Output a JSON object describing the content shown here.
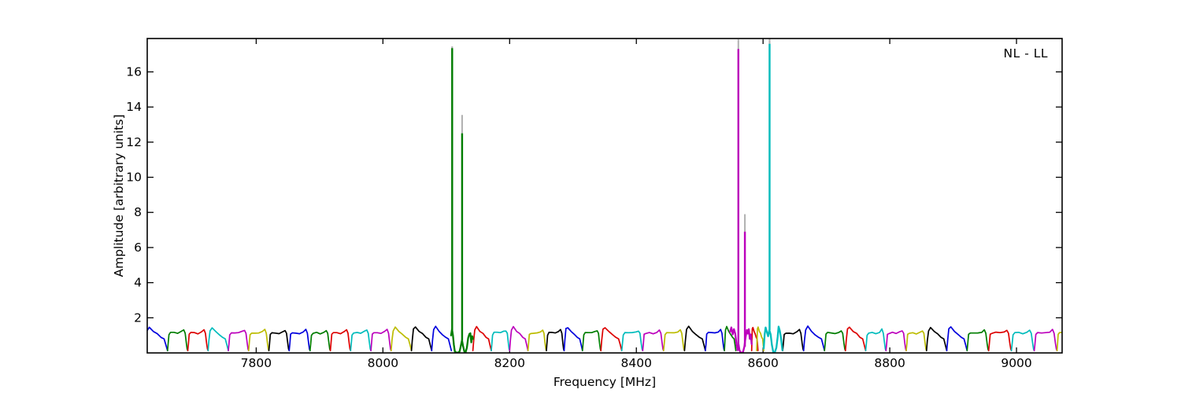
{
  "colors": {
    "b": "#0000dd",
    "g": "#007d00",
    "r": "#dd0000",
    "c": "#00bcbc",
    "m": "#bc00bc",
    "y": "#bcbc00",
    "k": "#000000",
    "gray": "#b3b3b3",
    "frame": "#000000",
    "background": "#ffffff"
  },
  "chart_data": {
    "type": "line",
    "corner_label": "NL - LL",
    "xlabel": "Frequency [MHz]",
    "ylabel": "Amplitude [arbitrary units]",
    "xlim": [
      7628,
      9072
    ],
    "ylim": [
      0,
      17.9
    ],
    "xticks": [
      7800,
      8000,
      8200,
      8400,
      8600,
      8800,
      9000
    ],
    "yticks": [
      2,
      4,
      6,
      8,
      10,
      12,
      14,
      16
    ],
    "grid": false,
    "legend": "none",
    "baseline_plateau_amplitude": 1.2,
    "baseline_notch_amplitude": 0.13,
    "baseline_segments": [
      [
        7624,
        7660,
        "b"
      ],
      [
        7660,
        7692,
        "g"
      ],
      [
        7692,
        7724,
        "r"
      ],
      [
        7724,
        7756,
        "c"
      ],
      [
        7756,
        7788,
        "m"
      ],
      [
        7788,
        7820,
        "y"
      ],
      [
        7820,
        7852,
        "k"
      ],
      [
        7852,
        7885,
        "b"
      ],
      [
        7885,
        7917,
        "g"
      ],
      [
        7917,
        7949,
        "r"
      ],
      [
        7949,
        7981,
        "c"
      ],
      [
        7981,
        8013,
        "m"
      ],
      [
        8013,
        8045,
        "y"
      ],
      [
        8045,
        8077,
        "k"
      ],
      [
        8077,
        8108,
        "b"
      ],
      [
        8142,
        8171,
        "r"
      ],
      [
        8171,
        8200,
        "c"
      ],
      [
        8200,
        8229,
        "m"
      ],
      [
        8229,
        8258,
        "y"
      ],
      [
        8258,
        8286,
        "k"
      ],
      [
        8286,
        8315,
        "b"
      ],
      [
        8315,
        8344,
        "g"
      ],
      [
        8344,
        8377,
        "r"
      ],
      [
        8377,
        8410,
        "c"
      ],
      [
        8410,
        8443,
        "m"
      ],
      [
        8443,
        8476,
        "y"
      ],
      [
        8476,
        8509,
        "k"
      ],
      [
        8509,
        8539,
        "b"
      ],
      [
        8539,
        8557,
        "g"
      ],
      [
        8582,
        8592,
        "r"
      ],
      [
        8590,
        8601,
        "y"
      ],
      [
        8631,
        8664,
        "k"
      ],
      [
        8664,
        8697,
        "b"
      ],
      [
        8697,
        8730,
        "g"
      ],
      [
        8730,
        8762,
        "r"
      ],
      [
        8762,
        8794,
        "c"
      ],
      [
        8794,
        8826,
        "m"
      ],
      [
        8826,
        8858,
        "y"
      ],
      [
        8858,
        8890,
        "k"
      ],
      [
        8890,
        8922,
        "b"
      ],
      [
        8922,
        8956,
        "g"
      ],
      [
        8956,
        8992,
        "r"
      ],
      [
        8992,
        9028,
        "c"
      ],
      [
        9028,
        9064,
        "m"
      ],
      [
        9064,
        9090,
        "y"
      ]
    ],
    "rfi_profiles": [
      {
        "color": "g",
        "points": [
          [
            8107.5,
            1.0
          ],
          [
            8109,
            1.35
          ],
          [
            8110.5,
            1.0
          ],
          [
            8112,
            0.45
          ],
          [
            8113.5,
            0.08
          ],
          [
            8116,
            0.02
          ],
          [
            8118.5,
            0.02
          ],
          [
            8121,
            0.08
          ],
          [
            8123,
            0.4
          ],
          [
            8124.8,
            0.72
          ],
          [
            8126.5,
            0.4
          ],
          [
            8128.5,
            0.07
          ],
          [
            8130.5,
            0.04
          ],
          [
            8132.5,
            0.3
          ],
          [
            8134.5,
            0.85
          ],
          [
            8136.5,
            1.08
          ],
          [
            8138,
            1.12
          ],
          [
            8139.5,
            0.6
          ],
          [
            8141,
            0.95
          ],
          [
            8142,
            0.8
          ]
        ]
      },
      {
        "color": "m",
        "points": [
          [
            8548,
            1.2
          ],
          [
            8550,
            1.45
          ],
          [
            8552,
            1.05
          ],
          [
            8554,
            1.35
          ],
          [
            8556,
            1.1
          ],
          [
            8558,
            0.5
          ],
          [
            8559.8,
            0.15
          ],
          [
            8561.2,
            0.5
          ],
          [
            8562.8,
            0.15
          ],
          [
            8564.5,
            0.03
          ],
          [
            8566.5,
            0.02
          ],
          [
            8568.5,
            0.06
          ],
          [
            8570.5,
            0.35
          ],
          [
            8572.5,
            0.9
          ],
          [
            8574.5,
            1.3
          ],
          [
            8576,
            1.1
          ],
          [
            8577.5,
            1.35
          ],
          [
            8579,
            0.8
          ],
          [
            8580.5,
            1.05
          ],
          [
            8582,
            0.5
          ]
        ]
      },
      {
        "color": "c",
        "points": [
          [
            8601,
            0.25
          ],
          [
            8602.5,
            1.05
          ],
          [
            8604,
            1.45
          ],
          [
            8606,
            1.2
          ],
          [
            8608,
            0.95
          ],
          [
            8610,
            1.3
          ],
          [
            8612,
            1.05
          ],
          [
            8614,
            0.45
          ],
          [
            8616,
            0.06
          ],
          [
            8618.5,
            0.03
          ],
          [
            8621,
            0.3
          ],
          [
            8623,
            0.9
          ],
          [
            8624.5,
            1.5
          ],
          [
            8626.5,
            1.25
          ],
          [
            8628.5,
            0.8
          ],
          [
            8630.5,
            0.15
          ]
        ]
      }
    ],
    "spikes": [
      {
        "freq": 8109.3,
        "color": "g",
        "base": 1.0,
        "peak": 17.35,
        "gray_peak": 17.45
      },
      {
        "freq": 8125.0,
        "color": "g",
        "base": 0.7,
        "peak": 12.5,
        "gray_peak": 13.55
      },
      {
        "freq": 8561.0,
        "color": "m",
        "base": 0.5,
        "peak": 17.3,
        "gray_peak": 17.85
      },
      {
        "freq": 8571.3,
        "color": "m",
        "base": 0.35,
        "peak": 6.9,
        "gray_peak": 7.9
      },
      {
        "freq": 8610.3,
        "color": "c",
        "base": 1.3,
        "peak": 17.6,
        "gray_peak": 17.9
      }
    ]
  }
}
